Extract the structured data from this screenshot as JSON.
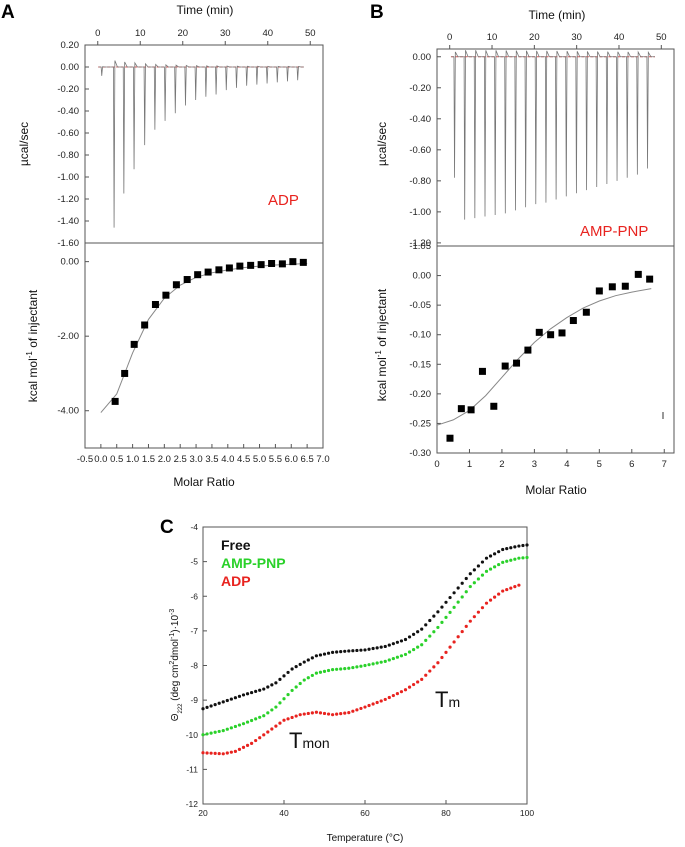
{
  "panels": {
    "a": {
      "letter": "A",
      "top_axis_title": "Time (min)",
      "top_ylabel": "µcal/sec",
      "bottom_ylabel_pre": "kcal mol",
      "bottom_ylabel_sup": "-1",
      "bottom_ylabel_post": " of injectant",
      "xlabel": "Molar Ratio",
      "ligand_label": "ADP"
    },
    "b": {
      "letter": "B",
      "top_axis_title": "Time (min)",
      "top_ylabel": "µcal/sec",
      "bottom_ylabel_pre": "kcal mol",
      "bottom_ylabel_sup": "-1",
      "bottom_ylabel_post": " of injectant",
      "xlabel": "Molar Ratio",
      "ligand_label": "AMP-PNP"
    },
    "c": {
      "letter": "C",
      "xlabel": "Temperature (°C)",
      "ylabel_pre": "Θ",
      "ylabel_sub": "222",
      "ylabel_mid": " (deg cm",
      "ylabel_sup1": "2",
      "ylabel_mid2": "dmol",
      "ylabel_sup2": "-1",
      "ylabel_post": ")·10",
      "ylabel_sup3": "-3",
      "tmon_big": "T",
      "tmon_small": "mon",
      "tm_big": "T",
      "tm_small": "m"
    }
  },
  "chart_data": [
    {
      "id": "A-raw",
      "type": "line",
      "title": "ADP",
      "xlabel": "Time (min)",
      "ylabel": "µcal/sec",
      "xlim": [
        -3,
        53
      ],
      "ylim": [
        -1.6,
        0.2
      ],
      "xticks": [
        0,
        10,
        20,
        30,
        40,
        50
      ],
      "yticks": [
        0.2,
        0.0,
        -0.2,
        -0.4,
        -0.6,
        -0.8,
        -1.0,
        -1.2,
        -1.4,
        -1.6
      ],
      "ytick_labels": [
        "0.20",
        "0.00",
        "-0.20",
        "-0.40",
        "-0.60",
        "-0.80",
        "-1.00",
        "-1.20",
        "-1.40",
        "-1.60"
      ],
      "injection_times": [
        0.8,
        3.7,
        6.0,
        8.4,
        10.9,
        13.3,
        15.7,
        18.1,
        20.5,
        22.9,
        25.3,
        27.7,
        30.1,
        32.5,
        34.9,
        37.3,
        39.7,
        42.1,
        44.5,
        46.9
      ],
      "peak_heights": [
        -0.08,
        -1.46,
        -1.15,
        -0.93,
        -0.71,
        -0.57,
        -0.49,
        -0.42,
        -0.35,
        -0.3,
        -0.27,
        -0.25,
        -0.21,
        -0.19,
        -0.17,
        -0.16,
        -0.15,
        -0.14,
        -0.13,
        -0.12
      ],
      "baseline": 0.0
    },
    {
      "id": "A-isotherm",
      "type": "scatter",
      "xlabel": "Molar Ratio",
      "ylabel": "kcal mol-1 of injectant",
      "xlim": [
        -0.5,
        7.0
      ],
      "ylim": [
        -5.0,
        0.5
      ],
      "xticks": [
        -0.5,
        0.0,
        0.5,
        1.0,
        1.5,
        2.0,
        2.5,
        3.0,
        3.5,
        4.0,
        4.5,
        5.0,
        5.5,
        6.0,
        6.5,
        7.0
      ],
      "xtick_labels": [
        "-0.5",
        "0.0",
        "0.5",
        "1.0",
        "1.5",
        "2.0",
        "2.5",
        "3.0",
        "3.5",
        "4.0",
        "4.5",
        "5.0",
        "5.5",
        "6.0",
        "6.5",
        "7.0"
      ],
      "yticks": [
        0,
        -2,
        -4
      ],
      "ytick_labels": [
        "0.00",
        "-2.00",
        "-4.00"
      ],
      "x": [
        0.45,
        0.75,
        1.05,
        1.38,
        1.72,
        2.05,
        2.38,
        2.72,
        3.05,
        3.38,
        3.72,
        4.05,
        4.38,
        4.72,
        5.05,
        5.38,
        5.72,
        6.05,
        6.38
      ],
      "y": [
        -3.75,
        -3.0,
        -2.22,
        -1.7,
        -1.15,
        -0.9,
        -0.62,
        -0.48,
        -0.35,
        -0.28,
        -0.22,
        -0.17,
        -0.12,
        -0.1,
        -0.08,
        -0.05,
        -0.06,
        0.0,
        -0.02
      ],
      "fit_x": [
        0.0,
        0.5,
        1.0,
        1.5,
        2.0,
        2.5,
        3.0,
        3.5,
        4.0,
        4.5,
        5.0,
        5.5,
        6.0,
        6.5
      ],
      "fit_y": [
        -4.05,
        -3.55,
        -2.45,
        -1.55,
        -0.98,
        -0.63,
        -0.42,
        -0.3,
        -0.22,
        -0.16,
        -0.12,
        -0.09,
        -0.07,
        -0.05
      ]
    },
    {
      "id": "B-raw",
      "type": "line",
      "title": "AMP-PNP",
      "xlabel": "Time (min)",
      "ylabel": "µcal/sec",
      "xlim": [
        -3,
        53
      ],
      "ylim": [
        -1.22,
        0.05
      ],
      "xticks": [
        0,
        10,
        20,
        30,
        40,
        50
      ],
      "yticks": [
        0.0,
        -0.2,
        -0.4,
        -0.6,
        -0.8,
        -1.0,
        -1.2
      ],
      "ytick_labels": [
        "0.00",
        "-0.20",
        "-0.40",
        "-0.60",
        "-0.80",
        "-1.00",
        "-1.20"
      ],
      "injection_times": [
        1.0,
        3.4,
        5.8,
        8.2,
        10.6,
        13.0,
        15.4,
        17.8,
        20.2,
        22.6,
        25.0,
        27.4,
        29.8,
        32.2,
        34.6,
        37.0,
        39.4,
        41.8,
        44.2,
        46.6
      ],
      "peak_heights": [
        -0.78,
        -1.05,
        -1.04,
        -1.03,
        -1.02,
        -1.01,
        -0.99,
        -0.97,
        -0.95,
        -0.94,
        -0.92,
        -0.9,
        -0.88,
        -0.86,
        -0.84,
        -0.82,
        -0.8,
        -0.78,
        -0.76,
        -0.72
      ],
      "baseline": 0.0
    },
    {
      "id": "B-isotherm",
      "type": "scatter",
      "xlabel": "Molar Ratio",
      "ylabel": "kcal mol-1 of injectant",
      "xlim": [
        0,
        7.3
      ],
      "ylim": [
        -0.3,
        0.05
      ],
      "xticks": [
        0,
        1,
        2,
        3,
        4,
        5,
        6,
        7
      ],
      "yticks": [
        0.0,
        -0.05,
        -0.1,
        -0.15,
        -0.2,
        -0.25,
        -0.3
      ],
      "ytick_labels": [
        "0.00",
        "-0.05",
        "-0.10",
        "-0.15",
        "-0.20",
        "-0.25",
        "-0.30"
      ],
      "top_tick_label": "-1.05",
      "x": [
        0.4,
        0.75,
        1.05,
        1.4,
        1.75,
        2.1,
        2.45,
        2.8,
        3.15,
        3.5,
        3.85,
        4.2,
        4.6,
        5.0,
        5.4,
        5.8,
        6.2,
        6.55
      ],
      "y": [
        -0.275,
        -0.225,
        -0.227,
        -0.162,
        -0.221,
        -0.153,
        -0.148,
        -0.126,
        -0.096,
        -0.1,
        -0.097,
        -0.076,
        -0.062,
        -0.026,
        -0.019,
        -0.018,
        0.002,
        -0.006
      ],
      "fit_x": [
        0.0,
        0.5,
        1.0,
        1.5,
        2.0,
        2.5,
        3.0,
        3.5,
        4.0,
        4.5,
        5.0,
        5.5,
        6.0,
        6.6
      ],
      "fit_y": [
        -0.253,
        -0.244,
        -0.228,
        -0.203,
        -0.172,
        -0.141,
        -0.113,
        -0.09,
        -0.071,
        -0.055,
        -0.043,
        -0.034,
        -0.028,
        -0.022
      ]
    },
    {
      "id": "C-CD",
      "type": "scatter",
      "xlabel": "Temperature (°C)",
      "ylabel": "Θ222 (deg cm2 dmol-1)·10-3",
      "xlim": [
        20,
        100
      ],
      "ylim": [
        -12,
        -4
      ],
      "xticks": [
        20,
        40,
        60,
        80,
        100
      ],
      "yticks": [
        -4,
        -5,
        -6,
        -7,
        -8,
        -9,
        -10,
        -11,
        -12
      ],
      "legend": [
        "Free",
        "AMP-PNP",
        "ADP"
      ],
      "series": [
        {
          "name": "Free",
          "color": "#111111",
          "kx": [
            20,
            25,
            30,
            35,
            38,
            42,
            45,
            48,
            52,
            56,
            60,
            65,
            70,
            74,
            78,
            82,
            86,
            90,
            94,
            98,
            100
          ],
          "ky": [
            -9.25,
            -9.05,
            -8.85,
            -8.68,
            -8.5,
            -8.1,
            -7.9,
            -7.72,
            -7.62,
            -7.58,
            -7.55,
            -7.45,
            -7.25,
            -6.95,
            -6.45,
            -5.9,
            -5.35,
            -4.9,
            -4.65,
            -4.55,
            -4.52
          ]
        },
        {
          "name": "AMP-PNP",
          "color": "#2ad12a",
          "kx": [
            20,
            25,
            30,
            35,
            38,
            42,
            45,
            48,
            52,
            56,
            60,
            65,
            70,
            74,
            78,
            82,
            86,
            90,
            94,
            98,
            100
          ],
          "ky": [
            -10.0,
            -9.88,
            -9.68,
            -9.45,
            -9.2,
            -8.72,
            -8.42,
            -8.22,
            -8.12,
            -8.08,
            -8.0,
            -7.88,
            -7.68,
            -7.4,
            -6.9,
            -6.32,
            -5.72,
            -5.28,
            -5.02,
            -4.9,
            -4.88
          ]
        },
        {
          "name": "ADP",
          "color": "#e8231f",
          "kx": [
            20,
            25,
            28,
            32,
            36,
            40,
            44,
            48,
            52,
            56,
            60,
            65,
            70,
            74,
            78,
            82,
            86,
            90,
            94,
            98
          ],
          "ky": [
            -10.52,
            -10.55,
            -10.48,
            -10.25,
            -9.92,
            -9.58,
            -9.42,
            -9.35,
            -9.42,
            -9.36,
            -9.2,
            -8.98,
            -8.7,
            -8.4,
            -7.92,
            -7.32,
            -6.72,
            -6.2,
            -5.85,
            -5.68
          ]
        }
      ]
    }
  ]
}
